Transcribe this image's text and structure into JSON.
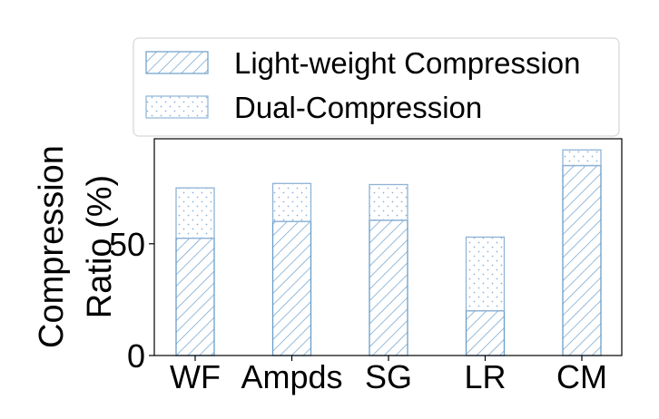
{
  "chart_data": {
    "type": "bar",
    "stacked": true,
    "categories": [
      "WF",
      "Ampds",
      "SG",
      "LR",
      "CM"
    ],
    "series": [
      {
        "name": "Light-weight Compression",
        "values": [
          52.5,
          60,
          60.5,
          20,
          85
        ],
        "pattern": "diagonal-hatch"
      },
      {
        "name": "Dual-Compression",
        "values": [
          22.5,
          17,
          16,
          33,
          7
        ],
        "pattern": "dots"
      }
    ],
    "ylabel_lines": [
      "Compression",
      "Ratio (%)"
    ],
    "yticks": [
      0,
      50
    ],
    "ylim": [
      0,
      97
    ],
    "grid": false,
    "legend_placement": "top",
    "colors": {
      "bar_edge": "#6a9ec9",
      "hatch": "#6a9ec9",
      "dots": "#8fb3d6",
      "frame": "#000000"
    }
  }
}
